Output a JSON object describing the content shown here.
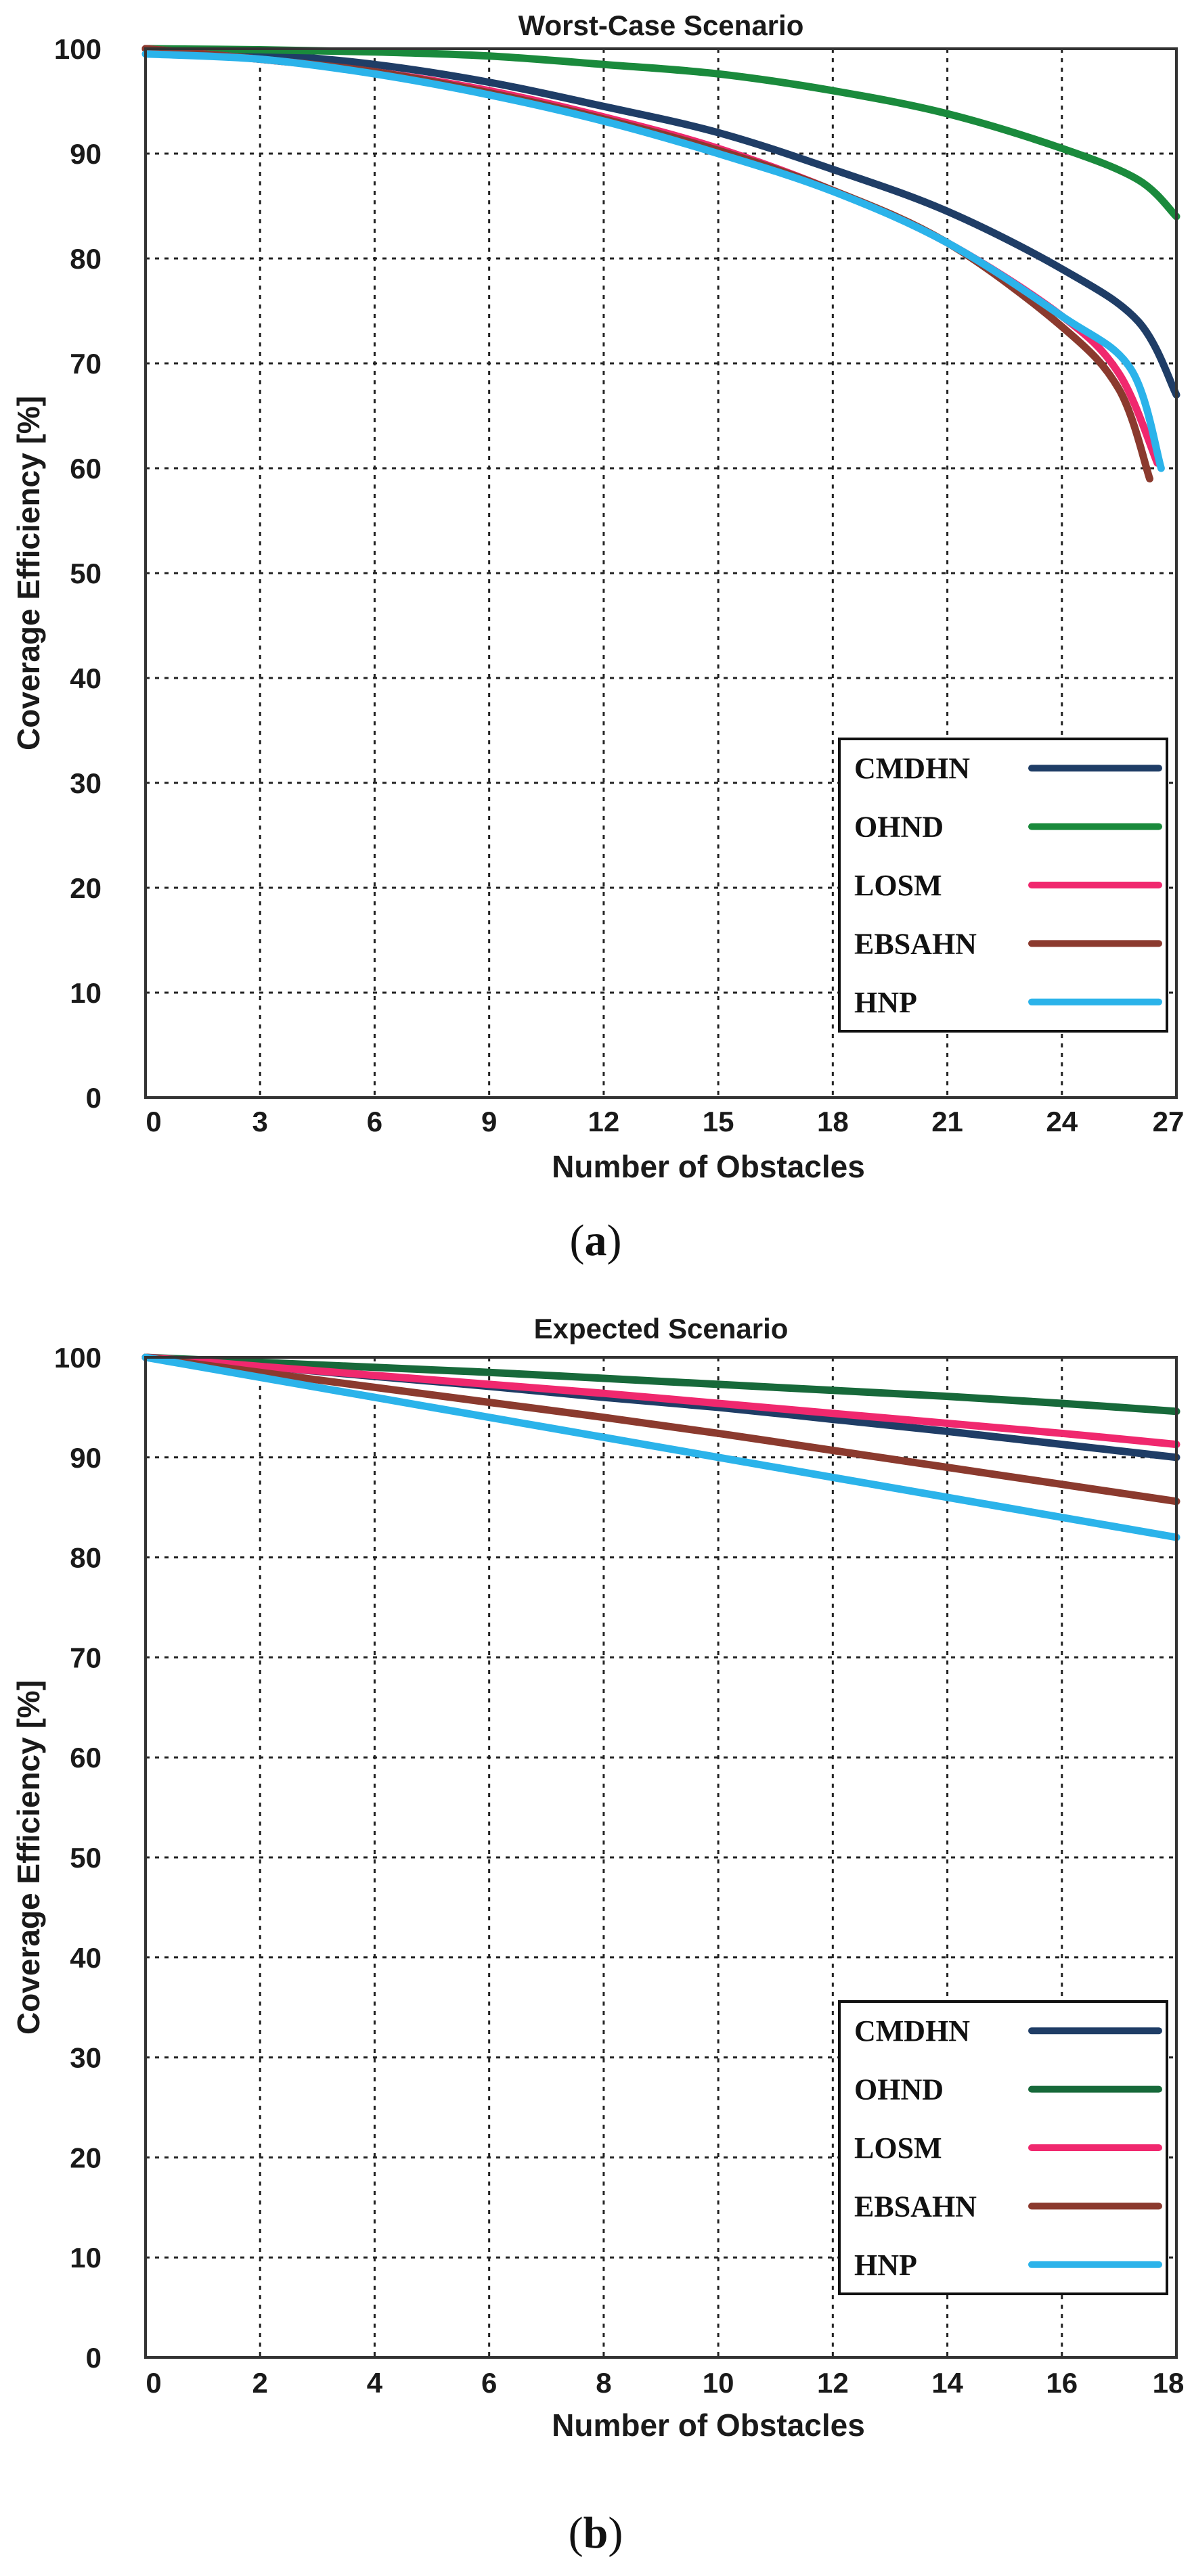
{
  "chart_data": [
    {
      "type": "line",
      "panel_label": "a",
      "title": "Worst-Case Scenario",
      "xlabel": "Number of Obstacles",
      "ylabel": "Coverage Efficiency [%]",
      "xlim": [
        0,
        27
      ],
      "ylim": [
        0,
        100
      ],
      "xticks": [
        0,
        3,
        6,
        9,
        12,
        15,
        18,
        21,
        24,
        27
      ],
      "yticks": [
        0,
        10,
        20,
        30,
        40,
        50,
        60,
        70,
        80,
        90,
        100
      ],
      "grid": true,
      "legend_position": "bottom-right",
      "series": [
        {
          "name": "CMDHN",
          "color": "#1f3d66",
          "x": [
            0,
            3,
            6,
            9,
            12,
            15,
            18,
            21,
            24,
            26,
            27
          ],
          "y": [
            100,
            99.5,
            98.5,
            96.8,
            94.5,
            92,
            88.5,
            84.5,
            79,
            74,
            67
          ]
        },
        {
          "name": "OHND",
          "color": "#1a8a3c",
          "x": [
            0,
            3,
            6,
            9,
            12,
            15,
            18,
            21,
            24,
            26,
            27
          ],
          "y": [
            100,
            99.9,
            99.7,
            99.3,
            98.5,
            97.6,
            96,
            93.8,
            90.5,
            87.5,
            84
          ]
        },
        {
          "name": "LOSM",
          "color": "#f0286e",
          "x": [
            0,
            3,
            6,
            9,
            12,
            15,
            18,
            21,
            24,
            25.5,
            26.5
          ],
          "y": [
            100,
            99,
            97.8,
            96,
            93.5,
            90.5,
            86.5,
            81.5,
            74.5,
            69,
            60.5
          ]
        },
        {
          "name": "EBSAHN",
          "color": "#8b3a2e",
          "x": [
            0,
            3,
            6,
            9,
            12,
            15,
            18,
            21,
            24,
            25.5,
            26.3
          ],
          "y": [
            100,
            99,
            97.8,
            95.8,
            93.3,
            90.3,
            86.5,
            81.5,
            73.5,
            67.5,
            59
          ]
        },
        {
          "name": "HNP",
          "color": "#2bb3ea",
          "x": [
            0,
            3,
            6,
            9,
            12,
            15,
            18,
            21,
            24,
            25.8,
            26.6
          ],
          "y": [
            99.5,
            99,
            97.6,
            95.6,
            93.1,
            90,
            86.4,
            81.5,
            74.5,
            69.5,
            60
          ]
        }
      ]
    },
    {
      "type": "line",
      "panel_label": "b",
      "title": "Expected Scenario",
      "xlabel": "Number of Obstacles",
      "ylabel": "Coverage Efficiency [%]",
      "xlim": [
        0,
        18
      ],
      "ylim": [
        0,
        100
      ],
      "xticks": [
        0,
        2,
        4,
        6,
        8,
        10,
        12,
        14,
        16,
        18
      ],
      "yticks": [
        0,
        10,
        20,
        30,
        40,
        50,
        60,
        70,
        80,
        90,
        100
      ],
      "grid": true,
      "legend_position": "bottom-right",
      "series": [
        {
          "name": "CMDHN",
          "color": "#1f3d66",
          "x": [
            0,
            2,
            4,
            6,
            8,
            10,
            12,
            14,
            16,
            18
          ],
          "y": [
            100,
            99.1,
            98.1,
            97.1,
            96,
            95,
            93.8,
            92.6,
            91.3,
            90
          ]
        },
        {
          "name": "OHND",
          "color": "#17693a",
          "x": [
            0,
            2,
            4,
            6,
            8,
            10,
            12,
            14,
            16,
            18
          ],
          "y": [
            100,
            99.5,
            99,
            98.5,
            97.9,
            97.3,
            96.7,
            96.1,
            95.4,
            94.6
          ]
        },
        {
          "name": "LOSM",
          "color": "#f0286e",
          "x": [
            0,
            2,
            4,
            6,
            8,
            10,
            12,
            14,
            16,
            18
          ],
          "y": [
            100,
            99.1,
            98.2,
            97.3,
            96.4,
            95.4,
            94.4,
            93.4,
            92.4,
            91.3
          ]
        },
        {
          "name": "EBSAHN",
          "color": "#8b3a2e",
          "x": [
            0,
            2,
            4,
            6,
            8,
            10,
            12,
            14,
            16,
            18
          ],
          "y": [
            100,
            98.5,
            97,
            95.5,
            94,
            92.4,
            90.7,
            89,
            87.3,
            85.6
          ]
        },
        {
          "name": "HNP",
          "color": "#2bb3ea",
          "x": [
            0,
            2,
            4,
            6,
            8,
            10,
            12,
            14,
            16,
            18
          ],
          "y": [
            100,
            98,
            96,
            94,
            92,
            90,
            88,
            86,
            84,
            82
          ]
        }
      ]
    }
  ]
}
